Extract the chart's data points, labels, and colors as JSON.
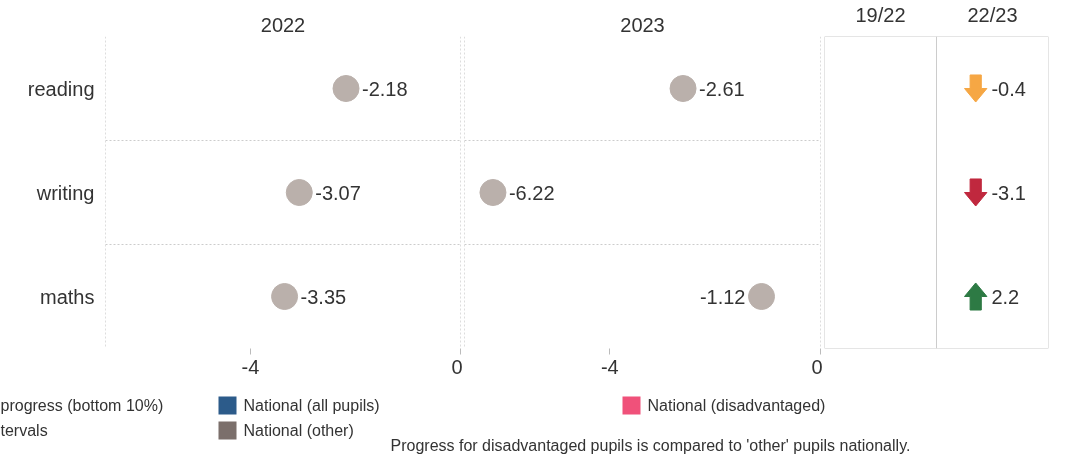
{
  "chart_data": [
    {
      "type": "scatter",
      "title": "2022",
      "categories": [
        "reading",
        "writing",
        "maths"
      ],
      "orientation": "horizontal",
      "xlim": [
        -6.76,
        0
      ],
      "xticks": [
        -4,
        0
      ],
      "grid": "y",
      "data_labels": true,
      "marker": "circle",
      "legend": "bottom",
      "series": [
        {
          "color": "#bab0ab",
          "values": [
            -2.18,
            -3.07,
            -3.35
          ]
        },
        {
          "name": "National (all pupils)",
          "color": "#2c5b8a",
          "values": [
            null,
            null,
            null
          ]
        },
        {
          "name": "National (other)",
          "color": "#7b6f6b",
          "values": [
            null,
            null,
            null
          ]
        },
        {
          "name": "National (disadvantaged)",
          "color": "#f0517a",
          "values": [
            null,
            null,
            null
          ]
        }
      ],
      "annotations": [
        "progress (bottom 10%)",
        "tervals"
      ]
    },
    {
      "type": "scatter",
      "title": "2023",
      "categories": [
        null,
        null,
        null
      ],
      "orientation": "horizontal",
      "xlim": [
        -6.76,
        0
      ],
      "xticks": [
        -4,
        0
      ],
      "grid": "y",
      "data_labels": true,
      "marker": "circle",
      "tick_labels": "x",
      "series": [
        {
          "color": "#bab0ab",
          "values": [
            -2.61,
            -6.22,
            -1.12
          ]
        }
      ],
      "annotations": [
        "Progress for disadvantaged pupils is compared to 'other' pupils nationally."
      ]
    },
    {
      "type": "other",
      "categories": [
        null,
        null,
        null
      ],
      "data_labels": true,
      "values": [
        -0.4,
        -3.1,
        2.2
      ],
      "colors": [
        "#f6a744",
        "#c0283e",
        "#2d7a44"
      ],
      "annotations": [
        "19/22",
        "22/23"
      ]
    }
  ]
}
